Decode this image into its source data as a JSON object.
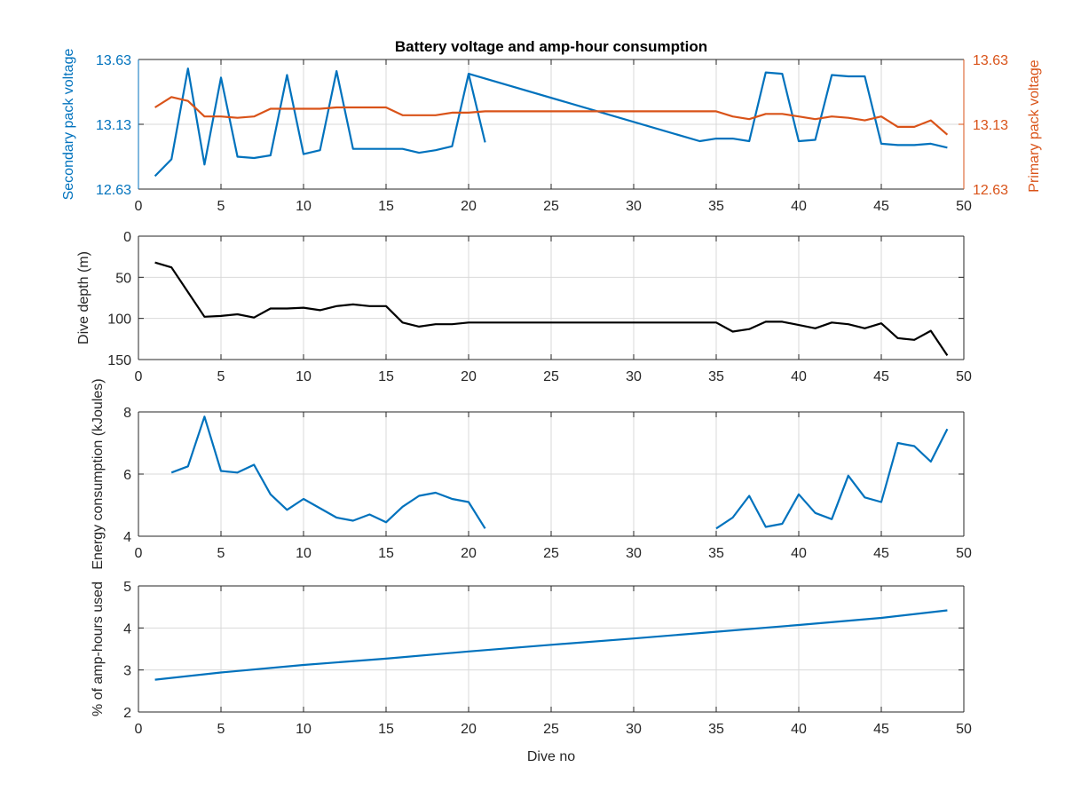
{
  "figure": {
    "title": "Battery voltage and amp-hour consumption",
    "colors": {
      "blue": "#0072bd",
      "orange": "#d95319",
      "black": "#000000",
      "axis": "#262626"
    }
  },
  "chart_data": [
    {
      "type": "line",
      "title": "Battery voltage and amp-hour consumption",
      "xlabel": "",
      "ylabel": "Secondary pack voltage",
      "ylabel_right": "Primary pack voltage",
      "xlim": [
        0,
        50
      ],
      "ylim": [
        12.63,
        13.63
      ],
      "ylim_right": [
        12.63,
        13.63
      ],
      "xticks": [
        "0",
        "5",
        "10",
        "15",
        "20",
        "25",
        "30",
        "35",
        "40",
        "45",
        "50"
      ],
      "yticks": [
        "12.63",
        "13.13",
        "13.63"
      ],
      "yticks_right": [
        "12.63",
        "13.13",
        "13.63"
      ],
      "grid": true,
      "series": [
        {
          "axis": "left",
          "color": "#0072bd",
          "segments": [
            [
              [
                1,
                12.73
              ],
              [
                2,
                12.86
              ],
              [
                3,
                13.56
              ],
              [
                4,
                12.82
              ],
              [
                5,
                13.49
              ],
              [
                6,
                12.88
              ],
              [
                7,
                12.87
              ],
              [
                8,
                12.89
              ],
              [
                9,
                13.51
              ],
              [
                10,
                12.9
              ],
              [
                11,
                12.93
              ],
              [
                12,
                13.54
              ],
              [
                13,
                12.94
              ],
              [
                14,
                12.94
              ],
              [
                15,
                12.94
              ],
              [
                16,
                12.94
              ],
              [
                17,
                12.91
              ],
              [
                18,
                12.93
              ],
              [
                19,
                12.96
              ],
              [
                20,
                13.52
              ],
              [
                21,
                12.99
              ]
            ],
            [
              [
                20,
                13.52
              ],
              [
                34,
                13.0
              ],
              [
                35,
                13.02
              ],
              [
                36,
                13.02
              ],
              [
                37,
                13.0
              ],
              [
                38,
                13.53
              ],
              [
                39,
                13.52
              ],
              [
                40,
                13.0
              ],
              [
                41,
                13.01
              ],
              [
                42,
                13.51
              ],
              [
                43,
                13.5
              ],
              [
                44,
                13.5
              ],
              [
                45,
                12.98
              ],
              [
                46,
                12.97
              ],
              [
                47,
                12.97
              ],
              [
                48,
                12.98
              ],
              [
                49,
                12.95
              ]
            ]
          ]
        },
        {
          "axis": "right",
          "color": "#d95319",
          "segments": [
            [
              [
                1,
                13.26
              ],
              [
                2,
                13.34
              ],
              [
                3,
                13.31
              ],
              [
                4,
                13.19
              ],
              [
                5,
                13.19
              ],
              [
                6,
                13.18
              ],
              [
                7,
                13.19
              ],
              [
                8,
                13.25
              ],
              [
                9,
                13.25
              ],
              [
                10,
                13.25
              ],
              [
                11,
                13.25
              ],
              [
                12,
                13.26
              ],
              [
                13,
                13.26
              ],
              [
                14,
                13.26
              ],
              [
                15,
                13.26
              ],
              [
                16,
                13.2
              ],
              [
                17,
                13.2
              ],
              [
                18,
                13.2
              ],
              [
                19,
                13.22
              ],
              [
                20,
                13.22
              ],
              [
                21,
                13.23
              ],
              [
                30,
                13.23
              ],
              [
                35,
                13.23
              ],
              [
                36,
                13.19
              ],
              [
                37,
                13.17
              ],
              [
                38,
                13.21
              ],
              [
                39,
                13.21
              ],
              [
                40,
                13.19
              ],
              [
                41,
                13.17
              ],
              [
                42,
                13.19
              ],
              [
                43,
                13.18
              ],
              [
                44,
                13.16
              ],
              [
                45,
                13.19
              ],
              [
                46,
                13.11
              ],
              [
                47,
                13.11
              ],
              [
                48,
                13.16
              ],
              [
                49,
                13.05
              ]
            ]
          ]
        }
      ]
    },
    {
      "type": "line",
      "title": "",
      "xlabel": "",
      "ylabel": "Dive depth (m)",
      "xlim": [
        0,
        50
      ],
      "ylim": [
        0,
        150
      ],
      "y_reversed": true,
      "xticks": [
        "0",
        "5",
        "10",
        "15",
        "20",
        "25",
        "30",
        "35",
        "40",
        "45",
        "50"
      ],
      "yticks": [
        "0",
        "50",
        "100",
        "150"
      ],
      "grid": true,
      "series": [
        {
          "color": "#000000",
          "segments": [
            [
              [
                1,
                32
              ],
              [
                2,
                38
              ],
              [
                3,
                68
              ],
              [
                4,
                98
              ],
              [
                5,
                97
              ],
              [
                6,
                95
              ],
              [
                7,
                99
              ],
              [
                8,
                88
              ],
              [
                9,
                88
              ],
              [
                10,
                87
              ],
              [
                11,
                90
              ],
              [
                12,
                85
              ],
              [
                13,
                83
              ],
              [
                14,
                85
              ],
              [
                15,
                85
              ],
              [
                16,
                105
              ],
              [
                17,
                110
              ],
              [
                18,
                107
              ],
              [
                19,
                107
              ],
              [
                20,
                105
              ],
              [
                25,
                105
              ],
              [
                30,
                105
              ],
              [
                35,
                105
              ],
              [
                36,
                116
              ],
              [
                37,
                113
              ],
              [
                38,
                104
              ],
              [
                39,
                104
              ],
              [
                40,
                108
              ],
              [
                41,
                112
              ],
              [
                42,
                105
              ],
              [
                43,
                107
              ],
              [
                44,
                112
              ],
              [
                45,
                106
              ],
              [
                46,
                124
              ],
              [
                47,
                126
              ],
              [
                48,
                115
              ],
              [
                49,
                145
              ]
            ]
          ]
        }
      ]
    },
    {
      "type": "line",
      "title": "",
      "xlabel": "",
      "ylabel": "Energy consumption (kJoules)",
      "xlim": [
        0,
        50
      ],
      "ylim": [
        4,
        8
      ],
      "xticks": [
        "0",
        "5",
        "10",
        "15",
        "20",
        "25",
        "30",
        "35",
        "40",
        "45",
        "50"
      ],
      "yticks": [
        "4",
        "6",
        "8"
      ],
      "grid": true,
      "series": [
        {
          "color": "#0072bd",
          "segments": [
            [
              [
                2,
                6.05
              ],
              [
                3,
                6.25
              ],
              [
                4,
                7.85
              ],
              [
                5,
                6.1
              ],
              [
                6,
                6.05
              ],
              [
                7,
                6.3
              ],
              [
                8,
                5.35
              ],
              [
                9,
                4.85
              ],
              [
                10,
                5.2
              ],
              [
                11,
                4.9
              ],
              [
                12,
                4.6
              ],
              [
                13,
                4.5
              ],
              [
                14,
                4.7
              ],
              [
                15,
                4.45
              ],
              [
                16,
                4.95
              ],
              [
                17,
                5.3
              ],
              [
                18,
                5.4
              ],
              [
                19,
                5.2
              ],
              [
                20,
                5.1
              ],
              [
                21,
                4.25
              ]
            ],
            [
              [
                35,
                4.25
              ],
              [
                36,
                4.6
              ],
              [
                37,
                5.3
              ],
              [
                38,
                4.3
              ],
              [
                39,
                4.4
              ],
              [
                40,
                5.35
              ],
              [
                41,
                4.75
              ],
              [
                42,
                4.55
              ],
              [
                43,
                5.95
              ],
              [
                44,
                5.25
              ],
              [
                45,
                5.1
              ],
              [
                46,
                7.0
              ],
              [
                47,
                6.9
              ],
              [
                48,
                6.4
              ],
              [
                49,
                7.45
              ]
            ]
          ]
        }
      ]
    },
    {
      "type": "line",
      "title": "",
      "xlabel": "Dive no",
      "ylabel": "% of amp-hours used",
      "xlim": [
        0,
        50
      ],
      "ylim": [
        2,
        5
      ],
      "xticks": [
        "0",
        "5",
        "10",
        "15",
        "20",
        "25",
        "30",
        "35",
        "40",
        "45",
        "50"
      ],
      "yticks": [
        "2",
        "3",
        "4",
        "5"
      ],
      "grid": true,
      "series": [
        {
          "color": "#0072bd",
          "segments": [
            [
              [
                1,
                2.77
              ],
              [
                5,
                2.94
              ],
              [
                10,
                3.12
              ],
              [
                15,
                3.27
              ],
              [
                20,
                3.44
              ],
              [
                25,
                3.6
              ],
              [
                30,
                3.75
              ],
              [
                35,
                3.91
              ],
              [
                40,
                4.07
              ],
              [
                45,
                4.24
              ],
              [
                49,
                4.42
              ]
            ]
          ]
        }
      ]
    }
  ]
}
